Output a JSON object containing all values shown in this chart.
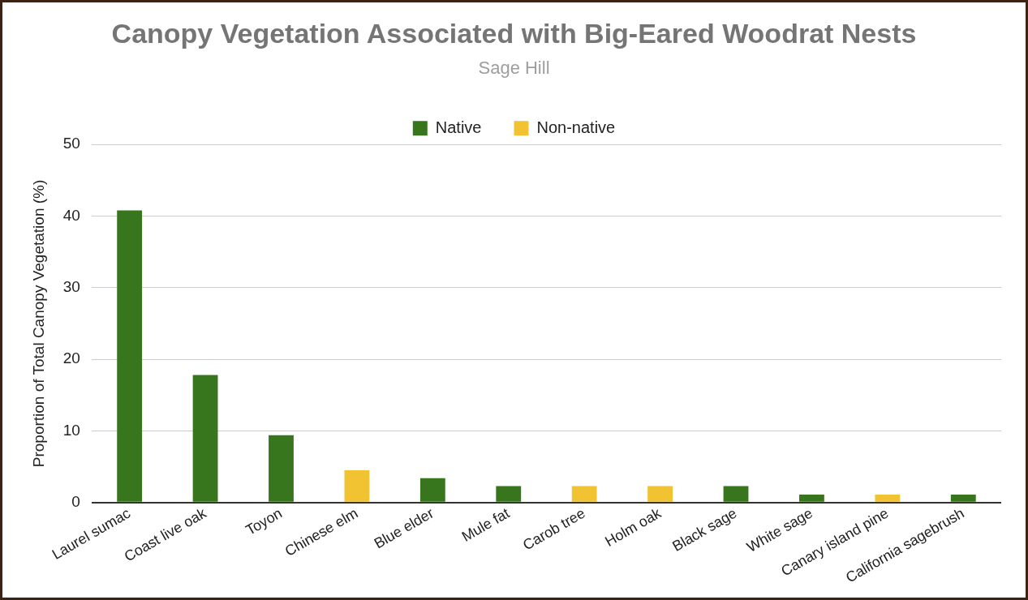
{
  "chart_data": {
    "type": "bar",
    "title": "Canopy Vegetation Associated with Big-Eared Woodrat Nests",
    "subtitle": "Sage Hill",
    "ylabel": "Proportion of Total Canopy Vegetation (%)",
    "categories": [
      "Laurel sumac",
      "Coast live oak",
      "Toyon",
      "Chinese elm",
      "Blue elder",
      "Mule fat",
      "Carob tree",
      "Holm oak",
      "Black sage",
      "White sage",
      "Canary island pine",
      "California sagebrush"
    ],
    "series": [
      {
        "name": "Native",
        "color": "#38761d",
        "values": [
          40.8,
          17.8,
          9.4,
          null,
          3.4,
          2.3,
          null,
          null,
          2.3,
          1.1,
          null,
          1.1
        ]
      },
      {
        "name": "Non-native",
        "color": "#f1c232",
        "values": [
          null,
          null,
          null,
          4.5,
          null,
          null,
          2.3,
          2.3,
          null,
          null,
          1.1,
          null
        ]
      }
    ],
    "ylim": [
      0,
      50
    ],
    "yticks": [
      0,
      10,
      20,
      30,
      40,
      50
    ],
    "grid": "y",
    "legend": "top"
  }
}
